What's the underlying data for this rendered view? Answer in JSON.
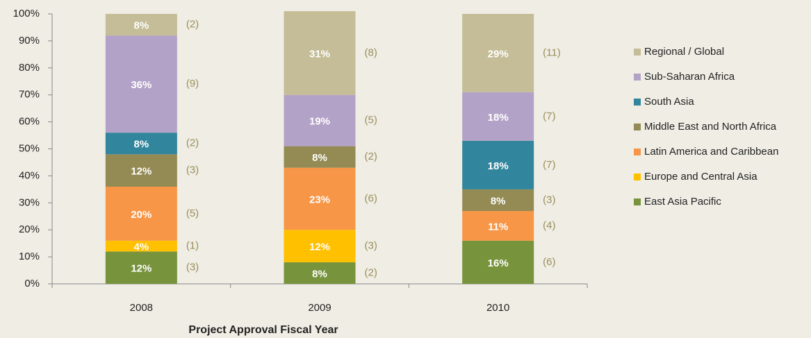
{
  "chart_data": {
    "type": "stacked_bar",
    "x_label": "Project Approval  Fiscal Year",
    "categories": [
      "2008",
      "2009",
      "2010"
    ],
    "ylim": [
      0,
      100
    ],
    "yticks": [
      {
        "value": 0,
        "label": "0%"
      },
      {
        "value": 10,
        "label": "10%"
      },
      {
        "value": 20,
        "label": "20%"
      },
      {
        "value": 30,
        "label": "30%"
      },
      {
        "value": 40,
        "label": "40%"
      },
      {
        "value": 50,
        "label": "50%"
      },
      {
        "value": 60,
        "label": "60%"
      },
      {
        "value": 70,
        "label": "70%"
      },
      {
        "value": 80,
        "label": "80%"
      },
      {
        "value": 90,
        "label": "90%"
      },
      {
        "value": 100,
        "label": "100%"
      }
    ],
    "legend_position": "right",
    "series": [
      {
        "name": "East Asia Pacific",
        "color": "#77933c",
        "values": [
          12,
          8,
          16
        ],
        "value_labels": [
          "12%",
          "8%",
          "16%"
        ],
        "count_labels": [
          "(3)",
          "(2)",
          "(6)"
        ]
      },
      {
        "name": "Europe and Central Asia",
        "color": "#ffc000",
        "values": [
          4,
          12,
          0
        ],
        "value_labels": [
          "4%",
          "12%",
          null
        ],
        "count_labels": [
          "(1)",
          "(3)",
          null
        ]
      },
      {
        "name": "Latin America and Caribbean",
        "color": "#f79646",
        "values": [
          20,
          23,
          11
        ],
        "value_labels": [
          "20%",
          "23%",
          "11%"
        ],
        "count_labels": [
          "(5)",
          "(6)",
          "(4)"
        ]
      },
      {
        "name": "Middle East and North Africa",
        "color": "#948a54",
        "values": [
          12,
          8,
          8
        ],
        "value_labels": [
          "12%",
          "8%",
          "8%"
        ],
        "count_labels": [
          "(3)",
          "(2)",
          "(3)"
        ]
      },
      {
        "name": "South Asia",
        "color": "#31859c",
        "values": [
          8,
          0,
          18
        ],
        "value_labels": [
          "8%",
          null,
          "18%"
        ],
        "count_labels": [
          "(2)",
          null,
          "(7)"
        ]
      },
      {
        "name": "Sub-Saharan Africa",
        "color": "#b3a2c7",
        "values": [
          36,
          19,
          18
        ],
        "value_labels": [
          "36%",
          "19%",
          "18%"
        ],
        "count_labels": [
          "(9)",
          "(5)",
          "(7)"
        ]
      },
      {
        "name": "Regional / Global",
        "color": "#c4bd97",
        "values": [
          8,
          31,
          29
        ],
        "value_labels": [
          "8%",
          "31%",
          "29%"
        ],
        "count_labels": [
          "(2)",
          "(8)",
          "(11)"
        ]
      }
    ]
  }
}
